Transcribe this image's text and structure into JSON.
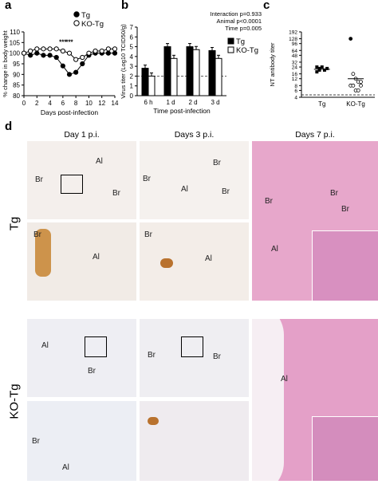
{
  "panels": {
    "a": "a",
    "b": "b",
    "c": "c",
    "d": "d"
  },
  "chart_data": [
    {
      "type": "line",
      "panel": "a",
      "ylabel": "% change in body weight",
      "xlabel": "Days post-infection",
      "x": [
        0,
        1,
        2,
        3,
        4,
        5,
        6,
        7,
        8,
        9,
        10,
        11,
        12,
        13,
        14
      ],
      "xticks": [
        0,
        2,
        4,
        6,
        8,
        10,
        12,
        14
      ],
      "yticks": [
        80,
        85,
        90,
        95,
        100,
        105,
        110
      ],
      "ylim": [
        80,
        110
      ],
      "xlim": [
        0,
        14
      ],
      "series": [
        {
          "name": "Tg",
          "marker": "filled",
          "values": [
            100,
            99,
            100,
            99,
            99,
            98,
            94,
            90,
            91,
            95,
            99,
            100,
            100,
            100,
            100
          ]
        },
        {
          "name": "KO-Tg",
          "marker": "open",
          "values": [
            100,
            101,
            102,
            102,
            102,
            102,
            101,
            100,
            97,
            98,
            100,
            101,
            101,
            102,
            102
          ]
        }
      ],
      "annotations": [
        {
          "x": 6,
          "text": "***"
        },
        {
          "x": 7,
          "text": "***"
        }
      ]
    },
    {
      "type": "bar",
      "panel": "b",
      "ylabel": "Virus titer (Log10 TCID50/g)",
      "xlabel": "Time post-infection",
      "categories": [
        "6 h",
        "1 d",
        "2 d",
        "3 d"
      ],
      "ylim": [
        0,
        7
      ],
      "yticks": [
        0,
        1,
        2,
        3,
        4,
        5,
        6,
        7
      ],
      "dashed_y": 2,
      "series": [
        {
          "name": "Tg",
          "color": "#000000",
          "values": [
            2.8,
            5.0,
            5.0,
            4.6
          ]
        },
        {
          "name": "KO-Tg",
          "color": "#ffffff",
          "values": [
            2.0,
            3.8,
            4.7,
            3.8
          ]
        }
      ],
      "stats": [
        "Interaction p=0.933",
        "Animal p<0.0001",
        "Time p=0.005"
      ]
    },
    {
      "type": "scatter",
      "panel": "c",
      "ylabel": "NT antibody titer",
      "categories": [
        "Tg",
        "KO-Tg"
      ],
      "yticks": [
        "4",
        "6",
        "8",
        "12",
        "16",
        "24",
        "32",
        "48",
        "64",
        "96",
        "128",
        "192"
      ],
      "ytick_values": [
        4,
        6,
        8,
        12,
        16,
        24,
        32,
        48,
        64,
        96,
        128,
        192
      ],
      "scale": "log",
      "dashed_y": 4,
      "series": [
        {
          "name": "Tg",
          "marker": "filled-square",
          "values": [
            18,
            22,
            24,
            20,
            22,
            24,
            20
          ],
          "mean": 21
        },
        {
          "name": "KO-Tg",
          "marker": "open-circle",
          "values": [
            128,
            16,
            12,
            10,
            10,
            8,
            8,
            6,
            6,
            8
          ],
          "mean": 12
        }
      ]
    }
  ],
  "histology": {
    "columns": [
      "Day 1 p.i.",
      "Days 3 p.i.",
      "Days 7 p.i."
    ],
    "rows": [
      "Tg",
      "KO-Tg"
    ],
    "labels": {
      "br": "Br",
      "al": "Al",
      "ai": "Al"
    }
  }
}
